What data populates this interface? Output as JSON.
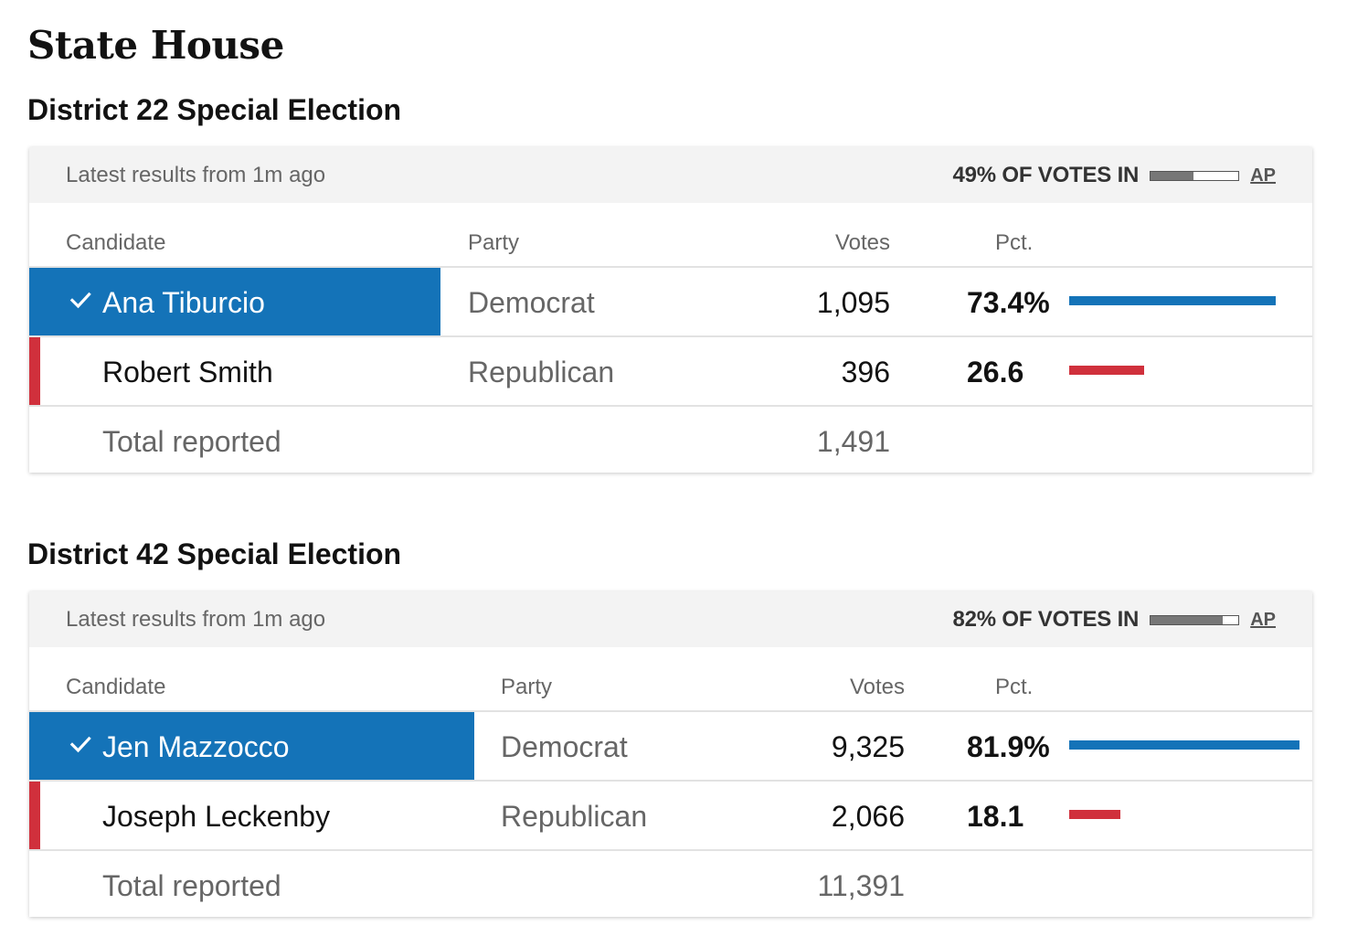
{
  "page": {
    "title": "State House"
  },
  "races": [
    {
      "heading": "District 22 Special Election",
      "updated": "Latest results from 1m ago",
      "reporting_text": "49% OF VOTES IN",
      "reporting_fraction": 0.49,
      "source": "AP",
      "columns": {
        "candidate": "Candidate",
        "party": "Party",
        "votes": "Votes",
        "pct": "Pct."
      },
      "candidates": [
        {
          "name": "Ana Tiburcio",
          "party": "Democrat",
          "votes": "1,095",
          "pct": "73.4%",
          "pct_value": 73.4,
          "winner": true,
          "party_color": "#1473b8"
        },
        {
          "name": "Robert Smith",
          "party": "Republican",
          "votes": "396",
          "pct": "26.6",
          "pct_value": 26.6,
          "winner": false,
          "party_color": "#d0303c"
        }
      ],
      "total": {
        "label": "Total reported",
        "votes": "1,491"
      }
    },
    {
      "heading": "District 42 Special Election",
      "updated": "Latest results from 1m ago",
      "reporting_text": "82% OF VOTES IN",
      "reporting_fraction": 0.82,
      "source": "AP",
      "columns": {
        "candidate": "Candidate",
        "party": "Party",
        "votes": "Votes",
        "pct": "Pct."
      },
      "candidates": [
        {
          "name": "Jen Mazzocco",
          "party": "Democrat",
          "votes": "9,325",
          "pct": "81.9%",
          "pct_value": 81.9,
          "winner": true,
          "party_color": "#1473b8"
        },
        {
          "name": "Joseph Leckenby",
          "party": "Republican",
          "votes": "2,066",
          "pct": "18.1",
          "pct_value": 18.1,
          "winner": false,
          "party_color": "#d0303c"
        }
      ],
      "total": {
        "label": "Total reported",
        "votes": "11,391"
      }
    }
  ],
  "icons": {
    "winner": "check-icon"
  }
}
